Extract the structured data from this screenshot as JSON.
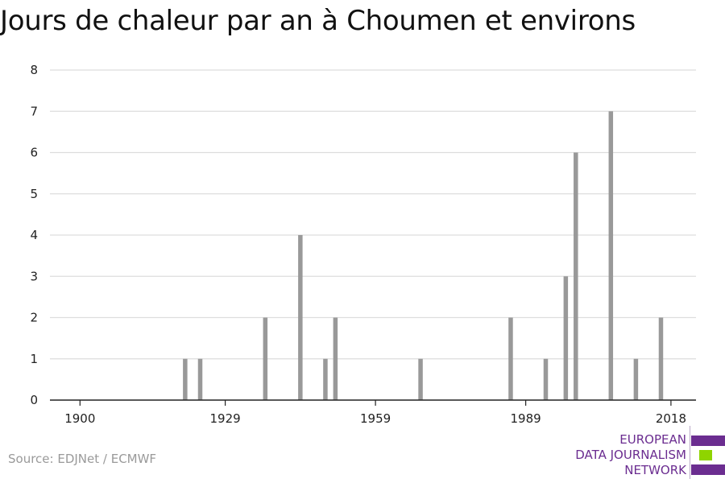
{
  "title": "Jours de chaleur par an à Choumen et environs",
  "source": "Source: EDJNet / ECMWF",
  "logo": {
    "line1": "EUROPEAN",
    "line2": "DATA JOURNALISM",
    "line3": "NETWORK",
    "colors": [
      "#6b2d90",
      "#8fd400",
      "#6b2d90"
    ]
  },
  "chart_data": {
    "type": "bar",
    "title": "Jours de chaleur par an à Choumen et environs",
    "xlabel": "",
    "ylabel": "",
    "xlim": [
      1894,
      2023
    ],
    "ylim": [
      0,
      8
    ],
    "yticks": [
      0,
      1,
      2,
      3,
      4,
      5,
      6,
      7,
      8
    ],
    "xticks": [
      1900,
      1929,
      1959,
      1989,
      2018
    ],
    "grid": true,
    "bar_color": "#999999",
    "x": [
      1921,
      1924,
      1937,
      1944,
      1949,
      1951,
      1968,
      1986,
      1993,
      1997,
      1999,
      2006,
      2011,
      2016
    ],
    "values": [
      1,
      1,
      2,
      4,
      1,
      2,
      1,
      2,
      1,
      3,
      6,
      7,
      1,
      2
    ]
  }
}
